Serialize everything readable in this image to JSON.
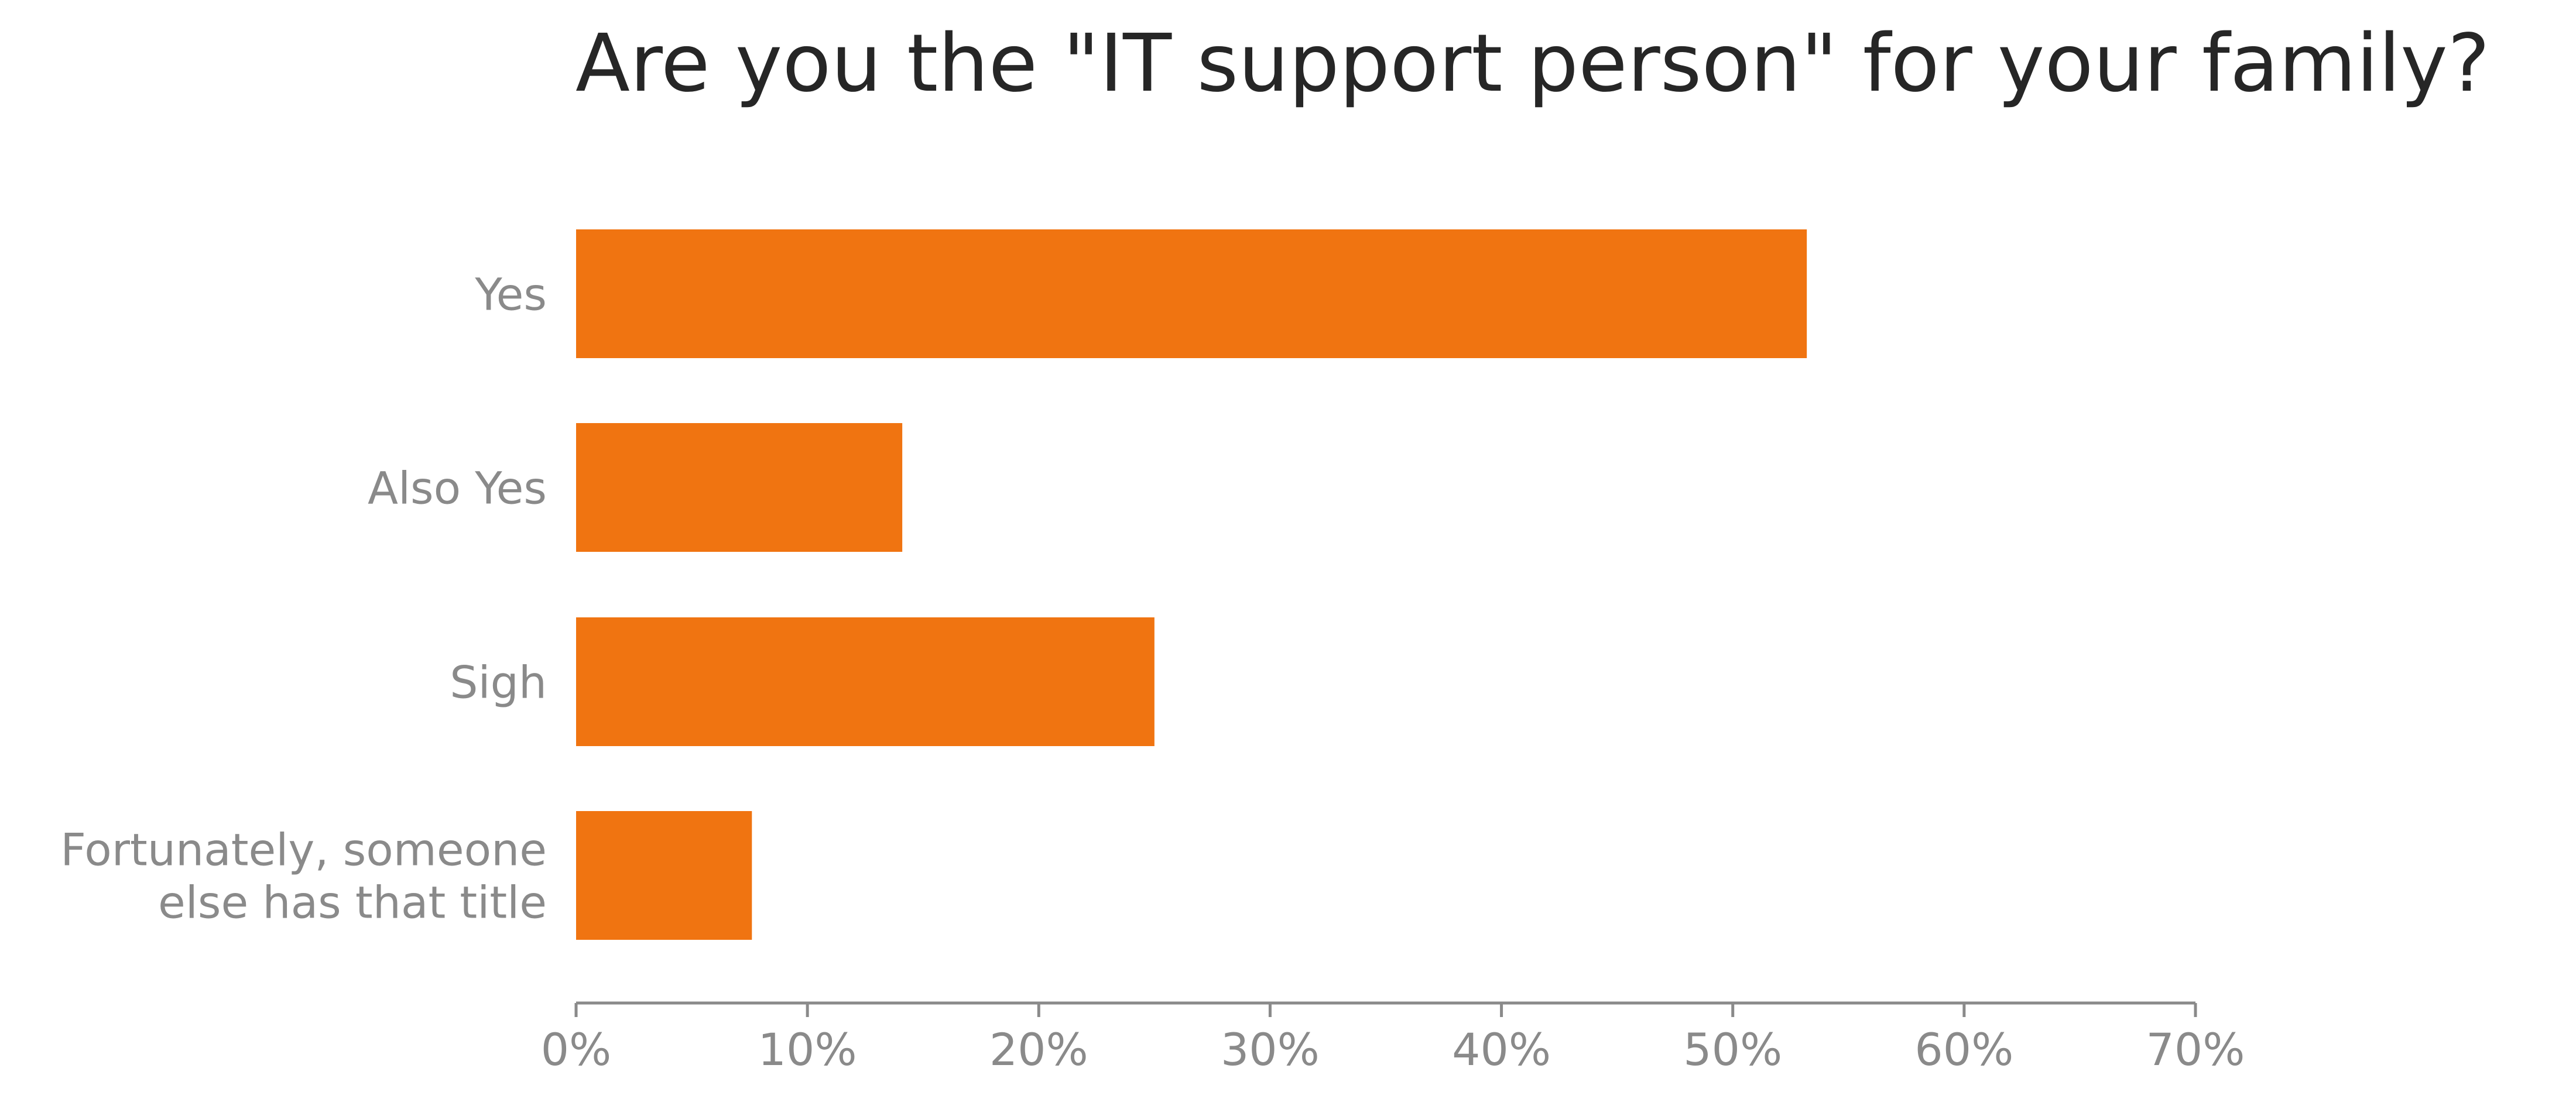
{
  "chart_data": {
    "type": "bar",
    "orientation": "horizontal",
    "title": "Are you the \"IT support person\" for your family?",
    "xlabel": "",
    "ylabel": "",
    "categories": [
      "Yes",
      "Also Yes",
      "Sigh",
      "Fortunately, someone else has that title"
    ],
    "category_lines": [
      [
        "Yes"
      ],
      [
        "Also Yes"
      ],
      [
        "Sigh"
      ],
      [
        "Fortunately, someone",
        "else has that title"
      ]
    ],
    "values": [
      53.2,
      14.1,
      25.0,
      7.6
    ],
    "value_unit": "%",
    "xlim": [
      0,
      70
    ],
    "xticks": [
      0,
      10,
      20,
      30,
      40,
      50,
      60,
      70
    ],
    "xtick_labels": [
      "0%",
      "10%",
      "20%",
      "30%",
      "40%",
      "50%",
      "60%",
      "70%"
    ],
    "grid": false,
    "legend": "none",
    "colors": {
      "bar": "#f07411",
      "axis": "#8a8a8a",
      "tick_label": "#8a8a8a",
      "category_label": "#8a8a8a",
      "title": "#262626"
    }
  }
}
